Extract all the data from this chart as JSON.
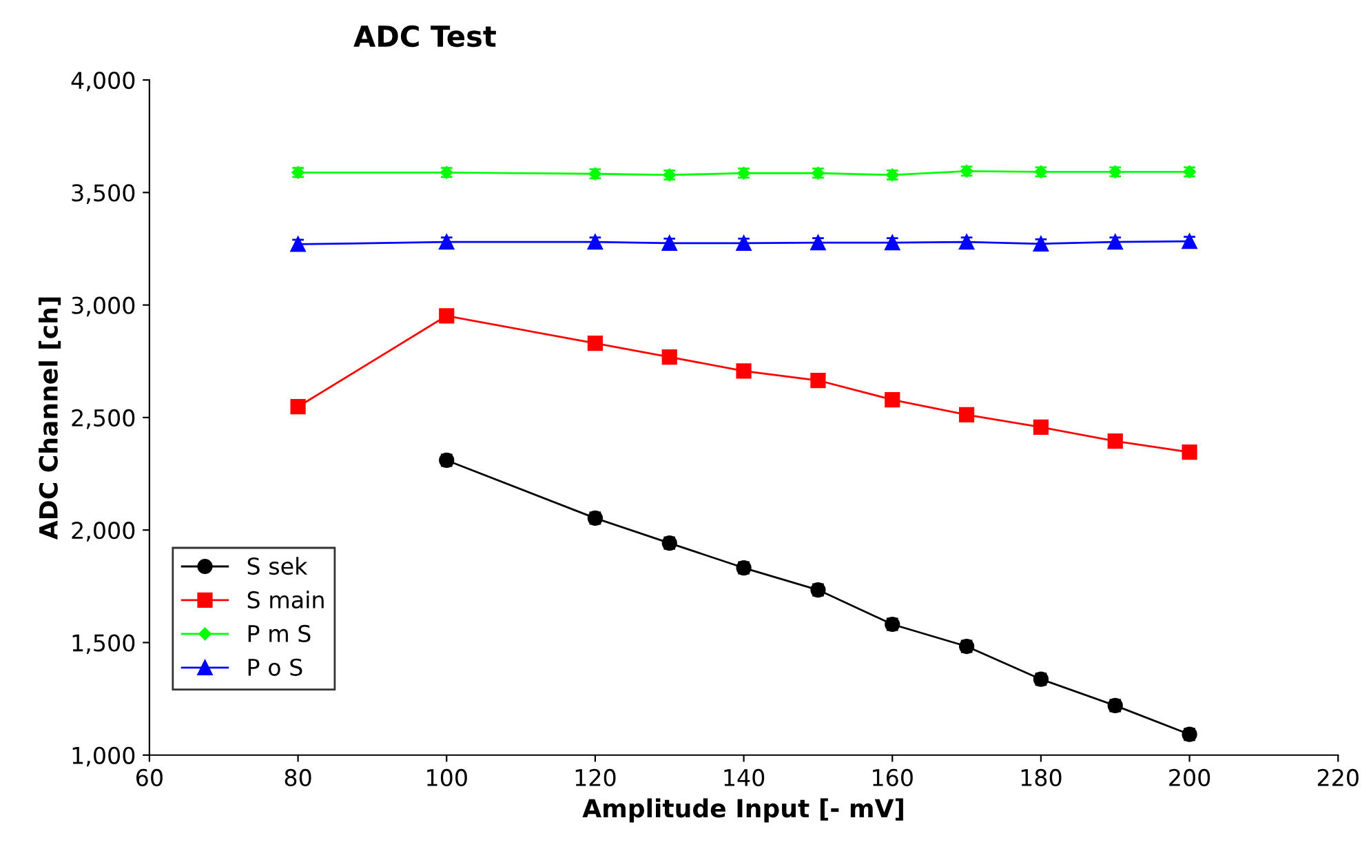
{
  "chart_data": {
    "type": "line",
    "title": "ADC Test",
    "xlabel": "Amplitude Input [- mV]",
    "ylabel": "ADC Channel [ch]",
    "xlim": [
      60,
      220
    ],
    "xticks": [
      60,
      80,
      100,
      120,
      140,
      160,
      180,
      200,
      220
    ],
    "ylim": [
      1000,
      4000
    ],
    "yticks": [
      {
        "value": 1000,
        "label": "1,000"
      },
      {
        "value": 1500,
        "label": "1,500"
      },
      {
        "value": 2000,
        "label": "2,000"
      },
      {
        "value": 2500,
        "label": "2,500"
      },
      {
        "value": 3000,
        "label": "3,000"
      },
      {
        "value": 3500,
        "label": "3,500"
      },
      {
        "value": 4000,
        "label": "4,000"
      }
    ],
    "grid": false,
    "legend": "bottom left",
    "line_style": "solid",
    "series": [
      {
        "name": "S sek",
        "color": "#000000",
        "marker": "circle",
        "x": [
          100,
          120,
          130,
          140,
          150,
          160,
          170,
          180,
          190,
          200
        ],
        "values": [
          2310,
          2053,
          1942,
          1832,
          1734,
          1581,
          1483,
          1337,
          1220,
          1092
        ],
        "errors": [
          25,
          25,
          25,
          25,
          25,
          25,
          25,
          25,
          25,
          25
        ]
      },
      {
        "name": "S main",
        "color": "#ff0000",
        "marker": "square",
        "x": [
          80,
          100,
          120,
          130,
          140,
          150,
          160,
          170,
          180,
          190,
          200
        ],
        "values": [
          2548,
          2952,
          2830,
          2769,
          2707,
          2665,
          2579,
          2512,
          2457,
          2395,
          2346
        ]
      },
      {
        "name": "P m S",
        "color": "#00ff00",
        "marker": "diamond",
        "x": [
          80,
          100,
          120,
          130,
          140,
          150,
          160,
          170,
          180,
          190,
          200
        ],
        "values": [
          3589,
          3589,
          3583,
          3578,
          3586,
          3586,
          3578,
          3595,
          3592,
          3592,
          3592
        ],
        "errors": [
          20,
          20,
          20,
          20,
          20,
          20,
          20,
          20,
          20,
          20,
          20
        ]
      },
      {
        "name": "P o S",
        "color": "#0000ff",
        "marker": "triangle",
        "x": [
          80,
          100,
          120,
          130,
          140,
          150,
          160,
          170,
          180,
          190,
          200
        ],
        "values": [
          3270,
          3280,
          3280,
          3275,
          3275,
          3277,
          3277,
          3280,
          3272,
          3280,
          3283
        ],
        "errors": [
          20,
          20,
          20,
          20,
          20,
          20,
          20,
          20,
          20,
          20,
          20
        ]
      }
    ]
  }
}
